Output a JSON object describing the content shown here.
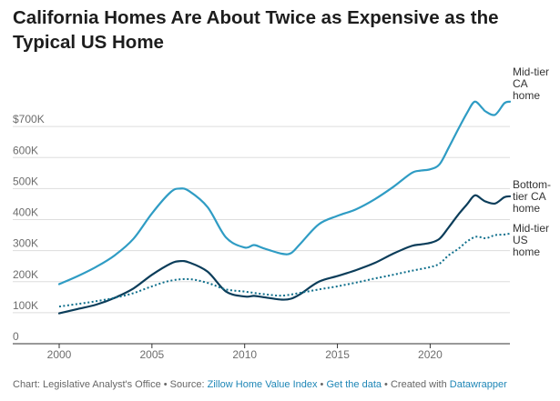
{
  "title": "California Homes Are About Twice as Expensive as the Typical US Home",
  "footer": {
    "chart_prefix": "Chart: Legislative Analyst's Office • Source: ",
    "source_link": "Zillow Home Value Index",
    "sep1": " • ",
    "data_link": "Get the data",
    "sep2": " • Created with ",
    "tool_link": "Datawrapper"
  },
  "colors": {
    "mid_ca": "#2f9cc4",
    "bottom_ca": "#0b3d5a",
    "mid_us": "#0f6f8c",
    "grid": "#dddddd",
    "link": "#1e86b6"
  },
  "chart_data": {
    "type": "line",
    "title": "California Homes Are About Twice as Expensive as the Typical US Home",
    "xlabel": "",
    "ylabel": "",
    "xlim": [
      2000,
      2024.3
    ],
    "ylim": [
      0,
      800000
    ],
    "grid": true,
    "x_ticks": [
      2000,
      2005,
      2010,
      2015,
      2020
    ],
    "y_ticks": [
      {
        "value": 0,
        "label": "0"
      },
      {
        "value": 100000,
        "label": "100K"
      },
      {
        "value": 200000,
        "label": "200K"
      },
      {
        "value": 300000,
        "label": "300K"
      },
      {
        "value": 400000,
        "label": "400K"
      },
      {
        "value": 500000,
        "label": "500K"
      },
      {
        "value": 600000,
        "label": "600K"
      },
      {
        "value": 700000,
        "label": "$700K"
      }
    ],
    "series": [
      {
        "name": "Mid-tier CA home",
        "label_lines": [
          "Mid-tier",
          "CA",
          "home"
        ],
        "color_key": "mid_ca",
        "style": "solid",
        "x": [
          2000,
          2001,
          2002,
          2003,
          2004,
          2005,
          2006,
          2006.5,
          2007,
          2008,
          2009,
          2010,
          2010.5,
          2011,
          2012,
          2012.5,
          2013,
          2014,
          2015,
          2016,
          2017,
          2018,
          2019,
          2019.5,
          2020,
          2020.5,
          2021,
          2021.5,
          2022,
          2022.4,
          2022.8,
          2023,
          2023.5,
          2024,
          2024.3
        ],
        "y": [
          192000,
          218000,
          248000,
          285000,
          338000,
          420000,
          488000,
          500000,
          492000,
          440000,
          342000,
          310000,
          318000,
          308000,
          290000,
          292000,
          322000,
          385000,
          412000,
          433000,
          465000,
          505000,
          550000,
          558000,
          562000,
          578000,
          632000,
          690000,
          745000,
          780000,
          760000,
          748000,
          738000,
          775000,
          780000
        ]
      },
      {
        "name": "Bottom-tier CA home",
        "label_lines": [
          "Bottom-",
          "tier CA",
          "home"
        ],
        "color_key": "bottom_ca",
        "style": "solid",
        "x": [
          2000,
          2001,
          2002,
          2003,
          2004,
          2005,
          2006,
          2006.5,
          2007,
          2008,
          2009,
          2010,
          2010.5,
          2011,
          2012,
          2012.5,
          2013,
          2014,
          2015,
          2016,
          2017,
          2018,
          2019,
          2019.5,
          2020,
          2020.5,
          2021,
          2021.5,
          2022,
          2022.4,
          2022.8,
          2023,
          2023.5,
          2024,
          2024.3
        ],
        "y": [
          98000,
          112000,
          126000,
          148000,
          178000,
          222000,
          258000,
          266000,
          262000,
          232000,
          168000,
          152000,
          154000,
          150000,
          142000,
          145000,
          160000,
          200000,
          218000,
          237000,
          260000,
          290000,
          315000,
          320000,
          325000,
          338000,
          375000,
          415000,
          450000,
          478000,
          465000,
          458000,
          452000,
          472000,
          475000
        ]
      },
      {
        "name": "Mid-tier US home",
        "label_lines": [
          "Mid-tier",
          "US",
          "home"
        ],
        "color_key": "mid_us",
        "style": "dotted",
        "x": [
          2000,
          2001,
          2002,
          2003,
          2004,
          2005,
          2006,
          2007,
          2008,
          2009,
          2010,
          2011,
          2012,
          2013,
          2014,
          2015,
          2016,
          2017,
          2018,
          2019,
          2020,
          2020.5,
          2021,
          2021.5,
          2022,
          2022.5,
          2023,
          2023.5,
          2024,
          2024.3
        ],
        "y": [
          120000,
          128000,
          137000,
          148000,
          163000,
          185000,
          203000,
          208000,
          196000,
          175000,
          168000,
          160000,
          155000,
          164000,
          175000,
          185000,
          197000,
          210000,
          222000,
          235000,
          247000,
          258000,
          285000,
          305000,
          330000,
          345000,
          340000,
          350000,
          352000,
          355000
        ]
      }
    ]
  }
}
